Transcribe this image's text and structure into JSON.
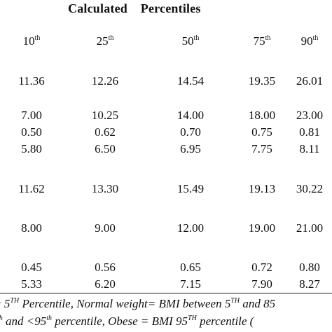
{
  "title": "Calculated    Percentiles",
  "columns": [
    {
      "value": "10",
      "suffix": "th"
    },
    {
      "value": "25",
      "suffix": "th"
    },
    {
      "value": "50",
      "suffix": "th"
    },
    {
      "value": "75",
      "suffix": "th"
    },
    {
      "value": "90",
      "suffix": "th"
    }
  ],
  "rows": [
    [
      "11.36",
      "12.26",
      "14.54",
      "19.35",
      "26.01"
    ],
    [
      "7.00",
      "10.25",
      "14.00",
      "18.00",
      "23.00"
    ],
    [
      "0.50",
      "0.62",
      "0.70",
      "0.75",
      "0.81"
    ],
    [
      "5.80",
      "6.50",
      "6.95",
      "7.75",
      "8.11"
    ],
    [
      "11.62",
      "13.30",
      "15.49",
      "19.13",
      "30.22"
    ],
    [
      "8.00",
      "9.00",
      "12.00",
      "19.00",
      "21.00"
    ],
    [
      "0.45",
      "0.56",
      "0.65",
      "0.72",
      "0.80"
    ],
    [
      "5.33",
      "6.20",
      "7.15",
      "7.90",
      "8.27"
    ]
  ],
  "footnote": {
    "line1": {
      "prefix": "; 5",
      "sup1": "TH",
      "middle": " Percentile, Normal weight= BMI between 5",
      "sup2": "TH",
      "suffix": " and 85"
    },
    "line2": {
      "prefix": "",
      "sup1": "th",
      "middle": " and <95",
      "sup2": "th",
      "tail": " percentile, Obese = BMI     95",
      "sup3": "TH",
      "suffix": " percentile ("
    }
  }
}
